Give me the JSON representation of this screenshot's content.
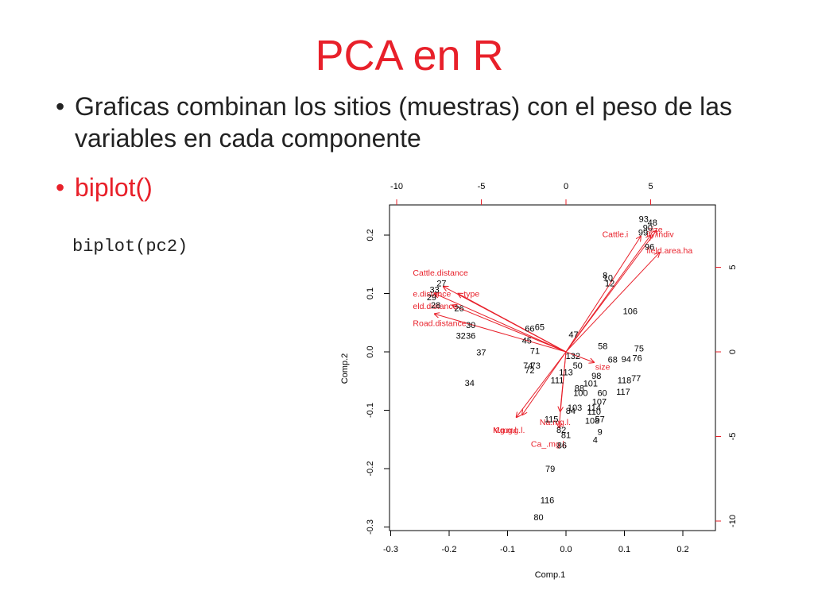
{
  "slide": {
    "title": "PCA en R",
    "bullets": [
      {
        "text": "Graficas combinan los sitios (muestras) con el peso de las variables en cada componente"
      },
      {
        "text": "biplot()"
      }
    ],
    "code": "biplot(pc2)"
  },
  "colors": {
    "title": "#e8202a",
    "text": "#222222",
    "accent": "#e8202a",
    "points": "#000000"
  },
  "chart_data": {
    "type": "scatter",
    "xlabel": "Comp.1",
    "ylabel": "Comp.2",
    "xlim": [
      -0.3,
      0.25
    ],
    "ylim": [
      -0.3,
      0.25
    ],
    "xticks": [
      "-0.3",
      "-0.2",
      "-0.1",
      "0.0",
      "0.1",
      "0.2"
    ],
    "yticks": [
      "-0.3",
      "-0.2",
      "-0.1",
      "0.0",
      "0.1",
      "0.2"
    ],
    "xticks_top": [
      "-10",
      "-5",
      "0",
      "5"
    ],
    "yticks_right": [
      "-10",
      "-5",
      "0",
      "5"
    ],
    "points": [
      {
        "label": "93",
        "x": 0.133,
        "y": 0.228
      },
      {
        "label": "48",
        "x": 0.148,
        "y": 0.222
      },
      {
        "label": "90",
        "x": 0.14,
        "y": 0.213
      },
      {
        "label": "99",
        "x": 0.132,
        "y": 0.205
      },
      {
        "label": "96",
        "x": 0.143,
        "y": 0.18
      },
      {
        "label": "8",
        "x": 0.067,
        "y": 0.131
      },
      {
        "label": "10",
        "x": 0.072,
        "y": 0.127
      },
      {
        "label": "12",
        "x": 0.075,
        "y": 0.118
      },
      {
        "label": "106",
        "x": 0.11,
        "y": 0.07
      },
      {
        "label": "75",
        "x": 0.125,
        "y": 0.006
      },
      {
        "label": "76",
        "x": 0.122,
        "y": -0.01
      },
      {
        "label": "94",
        "x": 0.103,
        "y": -0.012
      },
      {
        "label": "77",
        "x": 0.12,
        "y": -0.045
      },
      {
        "label": "118",
        "x": 0.1,
        "y": -0.048
      },
      {
        "label": "117",
        "x": 0.098,
        "y": -0.068
      },
      {
        "label": "60",
        "x": 0.062,
        "y": -0.07
      },
      {
        "label": "107",
        "x": 0.057,
        "y": -0.085
      },
      {
        "label": "101",
        "x": 0.042,
        "y": -0.054
      },
      {
        "label": "98",
        "x": 0.052,
        "y": -0.041
      },
      {
        "label": "114",
        "x": 0.048,
        "y": -0.095
      },
      {
        "label": "110",
        "x": 0.048,
        "y": -0.102
      },
      {
        "label": "108",
        "x": 0.045,
        "y": -0.118
      },
      {
        "label": "57",
        "x": 0.058,
        "y": -0.115
      },
      {
        "label": "9",
        "x": 0.058,
        "y": -0.137
      },
      {
        "label": "4",
        "x": 0.05,
        "y": -0.15
      },
      {
        "label": "103",
        "x": 0.015,
        "y": -0.095
      },
      {
        "label": "84",
        "x": 0.008,
        "y": -0.101
      },
      {
        "label": "100",
        "x": 0.025,
        "y": -0.07
      },
      {
        "label": "88",
        "x": 0.023,
        "y": -0.062
      },
      {
        "label": "115",
        "x": -0.025,
        "y": -0.115
      },
      {
        "label": "82",
        "x": -0.008,
        "y": -0.133
      },
      {
        "label": "81",
        "x": 0.0,
        "y": -0.142
      },
      {
        "label": "86",
        "x": -0.007,
        "y": -0.16
      },
      {
        "label": "79",
        "x": -0.027,
        "y": -0.2
      },
      {
        "label": "116",
        "x": -0.032,
        "y": -0.254
      },
      {
        "label": "80",
        "x": -0.047,
        "y": -0.283
      },
      {
        "label": "74",
        "x": -0.065,
        "y": -0.023
      },
      {
        "label": "73",
        "x": -0.052,
        "y": -0.023
      },
      {
        "label": "72",
        "x": -0.062,
        "y": -0.031
      },
      {
        "label": "113",
        "x": 0.0,
        "y": -0.035
      },
      {
        "label": "111",
        "x": -0.015,
        "y": -0.048
      },
      {
        "label": "50",
        "x": 0.02,
        "y": -0.023
      },
      {
        "label": "132",
        "x": 0.012,
        "y": -0.007
      },
      {
        "label": "68",
        "x": 0.08,
        "y": -0.013
      },
      {
        "label": "47",
        "x": 0.013,
        "y": 0.03
      },
      {
        "label": "58",
        "x": 0.063,
        "y": 0.01
      },
      {
        "label": "66",
        "x": -0.062,
        "y": 0.04
      },
      {
        "label": "65",
        "x": -0.045,
        "y": 0.043
      },
      {
        "label": "45",
        "x": -0.067,
        "y": 0.02
      },
      {
        "label": "71",
        "x": -0.053,
        "y": 0.002
      },
      {
        "label": "27",
        "x": -0.213,
        "y": 0.118
      },
      {
        "label": "33",
        "x": -0.225,
        "y": 0.107
      },
      {
        "label": "29",
        "x": -0.23,
        "y": 0.094
      },
      {
        "label": "28",
        "x": -0.223,
        "y": 0.08
      },
      {
        "label": "26",
        "x": -0.183,
        "y": 0.075
      },
      {
        "label": "30",
        "x": -0.163,
        "y": 0.046
      },
      {
        "label": "32",
        "x": -0.18,
        "y": 0.028
      },
      {
        "label": "36",
        "x": -0.163,
        "y": 0.028
      },
      {
        "label": "37",
        "x": -0.145,
        "y": -0.001
      },
      {
        "label": "34",
        "x": -0.165,
        "y": -0.053
      }
    ],
    "loadings": [
      {
        "name": "Cattle.distance",
        "x": -0.21,
        "y": 0.112,
        "lx": -0.262,
        "ly": 0.136
      },
      {
        "name": "e.distance",
        "x": -0.225,
        "y": 0.1,
        "lx": -0.262,
        "ly": 0.1
      },
      {
        "name": "type",
        "x": -0.185,
        "y": 0.1,
        "lx": -0.175,
        "ly": 0.1
      },
      {
        "name": "eld.distance",
        "x": -0.195,
        "y": 0.08,
        "lx": -0.262,
        "ly": 0.079
      },
      {
        "name": "Road.distance",
        "x": -0.225,
        "y": 0.065,
        "lx": -0.262,
        "ly": 0.05
      },
      {
        "name": "Cattle.i",
        "x": 0.128,
        "y": 0.198,
        "lx": 0.062,
        "ly": 0.202
      },
      {
        "name": "ity.indiv",
        "x": 0.145,
        "y": 0.2,
        "lx": 0.138,
        "ly": 0.202
      },
      {
        "name": "size",
        "x": 0.155,
        "y": 0.208,
        "lx": 0.14,
        "ly": 0.21
      },
      {
        "name": "field.area.ha",
        "x": 0.16,
        "y": 0.17,
        "lx": 0.138,
        "ly": 0.174
      },
      {
        "name": "size",
        "x": 0.048,
        "y": -0.018,
        "lx": 0.05,
        "ly": -0.025
      },
      {
        "name": "K.mg.l.",
        "x": -0.075,
        "y": -0.108,
        "lx": -0.125,
        "ly": -0.133
      },
      {
        "name": "Mg.mg.l.",
        "x": -0.085,
        "y": -0.112,
        "lx": -0.125,
        "ly": -0.133
      },
      {
        "name": "Na.mg.l.",
        "x": -0.01,
        "y": -0.102,
        "lx": -0.045,
        "ly": -0.12
      },
      {
        "name": "Ca_.mg.l.",
        "x": -0.012,
        "y": -0.13,
        "lx": -0.06,
        "ly": -0.157
      }
    ]
  }
}
